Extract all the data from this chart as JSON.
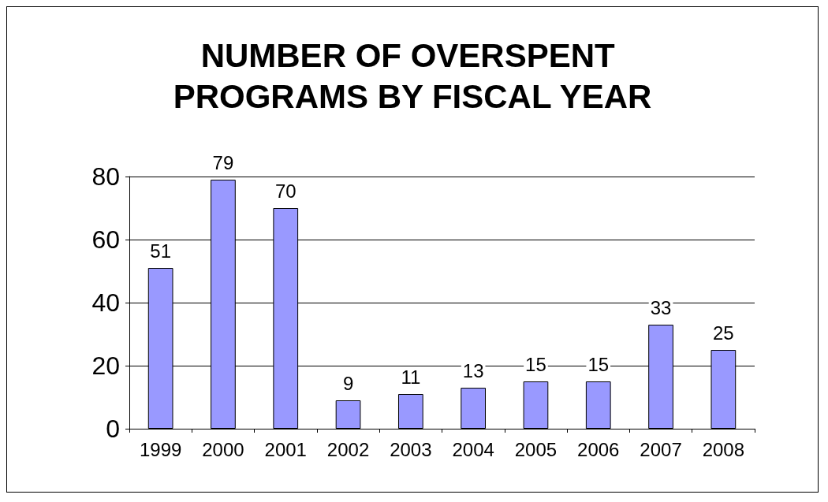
{
  "chart_data": {
    "type": "bar",
    "title": "NUMBER OF OVERSPENT PROGRAMS BY FISCAL YEAR",
    "categories": [
      "1999",
      "2000",
      "2001",
      "2002",
      "2003",
      "2004",
      "2005",
      "2006",
      "2007",
      "2008"
    ],
    "values": [
      51,
      79,
      70,
      9,
      11,
      13,
      15,
      15,
      33,
      25
    ],
    "color": "#9999ff",
    "ylim": [
      0,
      80
    ],
    "yticks": [
      0,
      20,
      40,
      60,
      80
    ],
    "grid": "y",
    "data_labels": true
  }
}
